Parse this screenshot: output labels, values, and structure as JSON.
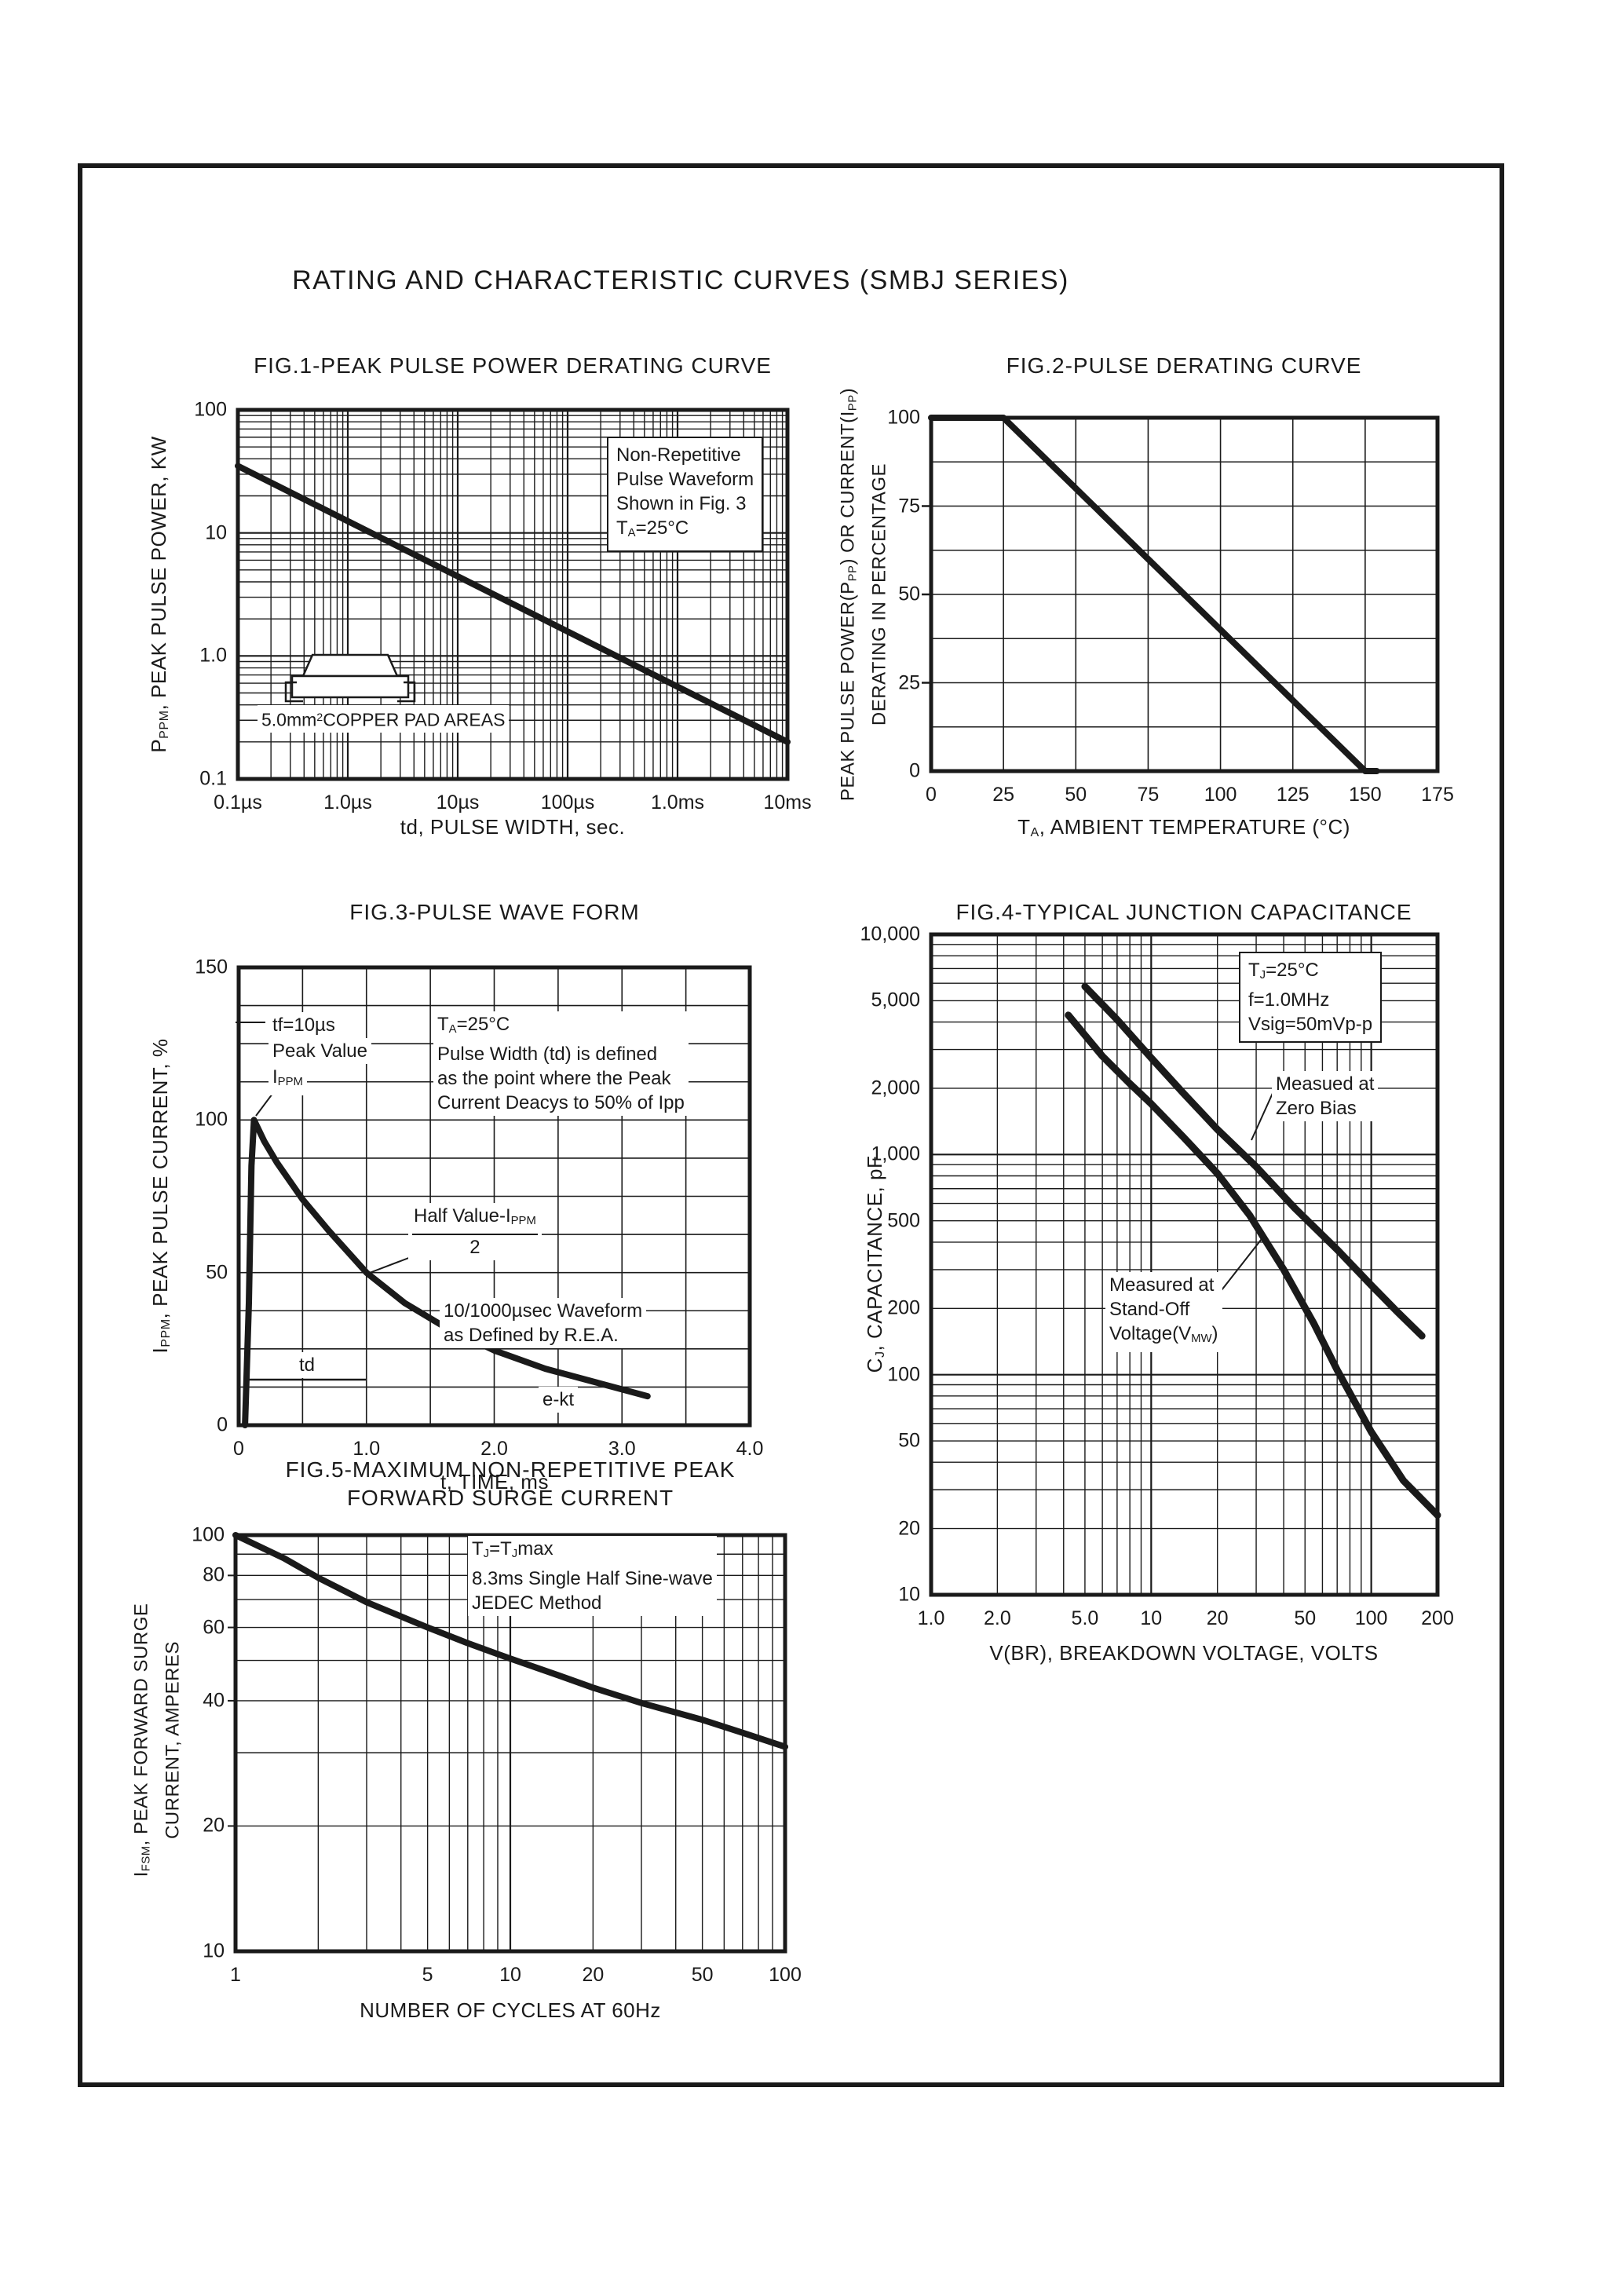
{
  "page": {
    "title": "RATING AND CHARACTERISTIC CURVES (SMBJ SERIES)"
  },
  "chart_data": [
    {
      "id": "fig1",
      "type": "line",
      "title": "FIG.1-PEAK PULSE POWER DERATING CURVE",
      "xlabel": "td, PULSE WIDTH, sec.",
      "ylabel": "P_{PPM}, PEAK PULSE POWER, KW",
      "xscale": "log",
      "yscale": "log",
      "xlim": [
        1e-07,
        0.01
      ],
      "ylim": [
        0.1,
        100
      ],
      "grid": "full log-log minor grid",
      "legend": "none",
      "xtick_values": [
        1e-07,
        1e-06,
        1e-05,
        0.0001,
        0.001,
        0.01
      ],
      "xtick_labels": [
        "0.1µs",
        "1.0µs",
        "10µs",
        "100µs",
        "1.0ms",
        "10ms"
      ],
      "ytick_values": [
        100,
        10,
        1.0,
        0.1
      ],
      "ytick_labels": [
        "100",
        "10",
        "1.0",
        "0.1"
      ],
      "series": [
        {
          "name": "peak-pulse-power-derating",
          "points": [
            [
              1e-07,
              35
            ],
            [
              0.01,
              0.2
            ]
          ]
        }
      ],
      "annotation_lines": [
        "Non-Repetitive",
        "Pulse Waveform",
        "Shown in Fig. 3",
        "T_{A}=25°C"
      ],
      "inset_label": "5.0mm^{2}COPPER PAD AREAS"
    },
    {
      "id": "fig2",
      "type": "line",
      "title": "FIG.2-PULSE DERATING CURVE",
      "xlabel": "T_{A}, AMBIENT TEMPERATURE (°C)",
      "ylabel_lines": [
        "PEAK PULSE POWER(P_{PP}) OR CURRENT(I_{PP})",
        "DERATING IN PERCENTAGE"
      ],
      "xscale": "linear",
      "yscale": "linear",
      "xlim": [
        0,
        175
      ],
      "ylim": [
        0,
        100
      ],
      "grid": "vertical every 25, horizontal every 12.5",
      "legend": "none",
      "xtick_values": [
        0,
        25,
        50,
        75,
        100,
        125,
        150,
        175
      ],
      "xtick_labels": [
        "0",
        "25",
        "50",
        "75",
        "100",
        "125",
        "150",
        "175"
      ],
      "ytick_values": [
        0,
        25,
        50,
        75,
        100
      ],
      "ytick_labels": [
        "0",
        "25",
        "50",
        "75",
        "100"
      ],
      "series": [
        {
          "name": "pulse-derating",
          "points": [
            [
              0,
              100
            ],
            [
              25,
              100
            ],
            [
              150,
              0
            ],
            [
              154,
              0
            ]
          ]
        }
      ]
    },
    {
      "id": "fig3",
      "type": "line",
      "title": "FIG.3-PULSE WAVE FORM",
      "xlabel": "t, TIME, ms",
      "ylabel": "I_{PPM}, PEAK PULSE CURRENT, %",
      "xscale": "linear",
      "yscale": "linear",
      "xlim": [
        0,
        4.0
      ],
      "ylim": [
        0,
        150
      ],
      "grid": "vertical every 0.5, horizontal every 12.5",
      "legend": "none",
      "xtick_values": [
        0,
        1.0,
        2.0,
        3.0,
        4.0
      ],
      "xtick_labels": [
        "0",
        "1.0",
        "2.0",
        "3.0",
        "4.0"
      ],
      "ytick_values": [
        0,
        50,
        100,
        150
      ],
      "ytick_labels": [
        "0",
        "50",
        "100",
        "150"
      ],
      "series": [
        {
          "name": "10-1000us-pulse-waveform",
          "points": [
            [
              0.05,
              0
            ],
            [
              0.08,
              40
            ],
            [
              0.1,
              85
            ],
            [
              0.12,
              100
            ],
            [
              0.2,
              93
            ],
            [
              0.3,
              86
            ],
            [
              0.5,
              74
            ],
            [
              0.7,
              64
            ],
            [
              1.0,
              50
            ],
            [
              1.3,
              40
            ],
            [
              1.6,
              32.5
            ],
            [
              2.0,
              24.5
            ],
            [
              2.4,
              18.5
            ],
            [
              2.8,
              14
            ],
            [
              3.2,
              9.5
            ]
          ]
        }
      ],
      "annotations": {
        "tf": "tf=10µs",
        "peak_value": "Peak Value",
        "ippm": "I_{PPM}",
        "cond_lines": [
          "T_{A}=25°C",
          "Pulse Width (td) is defined",
          "as the point where the Peak",
          "Current Deacys to 50% of Ipp"
        ],
        "half_value_numerator": "Half Value-I_{PPM}",
        "half_value_denominator": "2",
        "waveform_lines": [
          "10/1000µsec Waveform",
          "as Defined by R.E.A."
        ],
        "td": "td",
        "ekt": "e-kt"
      }
    },
    {
      "id": "fig4",
      "type": "line",
      "title": "FIG.4-TYPICAL JUNCTION CAPACITANCE",
      "xlabel": "V(BR), BREAKDOWN VOLTAGE, VOLTS",
      "ylabel": "C_{J}, CAPACITANCE, pF",
      "xscale": "log",
      "yscale": "log",
      "xlim": [
        1.0,
        200
      ],
      "ylim": [
        10,
        10000
      ],
      "grid": "full log-log minor grid",
      "legend": "none",
      "xtick_values": [
        1,
        2,
        5,
        10,
        20,
        50,
        100,
        200
      ],
      "xtick_labels": [
        "1.0",
        "2.0",
        "5.0",
        "10",
        "20",
        "50",
        "100",
        "200"
      ],
      "ytick_values": [
        10000,
        5000,
        2000,
        1000,
        500,
        200,
        100,
        50,
        20,
        10
      ],
      "ytick_labels": [
        "10,000",
        "5,000",
        "2,000",
        "1,000",
        "500",
        "200",
        "100",
        "50",
        "20",
        "10"
      ],
      "series": [
        {
          "name": "measured-at-zero-bias",
          "points": [
            [
              5,
              5800
            ],
            [
              7,
              4100
            ],
            [
              10,
              2750
            ],
            [
              14,
              1900
            ],
            [
              20,
              1300
            ],
            [
              30,
              880
            ],
            [
              45,
              570
            ],
            [
              70,
              370
            ],
            [
              100,
              255
            ],
            [
              130,
              195
            ],
            [
              170,
              150
            ]
          ]
        },
        {
          "name": "measured-at-stand-off-voltage",
          "points": [
            [
              4.2,
              4300
            ],
            [
              6,
              2800
            ],
            [
              8,
              2100
            ],
            [
              10,
              1700
            ],
            [
              14,
              1200
            ],
            [
              20,
              820
            ],
            [
              28,
              530
            ],
            [
              40,
              300
            ],
            [
              55,
              170
            ],
            [
              70,
              105
            ],
            [
              100,
              55
            ],
            [
              140,
              33
            ],
            [
              200,
              23
            ]
          ]
        }
      ],
      "annotations": {
        "cond_lines": [
          "T_{J}=25°C",
          "f=1.0MHz",
          "Vsig=50mVp-p"
        ],
        "zero_bias_lines": [
          "Measued at",
          "Zero Bias"
        ],
        "standoff_lines": [
          "Measured at",
          "Stand-Off",
          "Voltage(V_{MW})"
        ]
      }
    },
    {
      "id": "fig5",
      "type": "line",
      "title_lines": [
        "FIG.5-MAXIMUM NON-REPETITIVE PEAK",
        "FORWARD SURGE CURRENT"
      ],
      "xlabel": "NUMBER OF CYCLES AT 60Hz",
      "ylabel_lines": [
        "I_{FSM}, PEAK FORWARD SURGE",
        "CURRENT, AMPERES"
      ],
      "xscale": "log",
      "yscale": "log",
      "xlim": [
        1,
        100
      ],
      "ylim": [
        10,
        100
      ],
      "grid": "log minor grid, horizontal lines every 10",
      "legend": "none",
      "xtick_values": [
        1,
        5,
        10,
        20,
        50,
        100
      ],
      "xtick_labels": [
        "1",
        "5",
        "10",
        "20",
        "50",
        "100"
      ],
      "ytick_values": [
        10,
        20,
        40,
        60,
        80,
        100
      ],
      "ytick_labels": [
        "10",
        "20",
        "40",
        "60",
        "80",
        "100"
      ],
      "series": [
        {
          "name": "max-peak-forward-surge-current",
          "points": [
            [
              1,
              100
            ],
            [
              1.5,
              88
            ],
            [
              2,
              79
            ],
            [
              3,
              69
            ],
            [
              5,
              60
            ],
            [
              7,
              55
            ],
            [
              10,
              50.5
            ],
            [
              15,
              46
            ],
            [
              20,
              43
            ],
            [
              30,
              39.5
            ],
            [
              50,
              36
            ],
            [
              70,
              33.5
            ],
            [
              100,
              31
            ]
          ]
        }
      ],
      "annotations": {
        "cond_lines": [
          "T_{J}=T_{J}max",
          "8.3ms Single Half Sine-wave",
          "JEDEC Method"
        ]
      }
    }
  ]
}
